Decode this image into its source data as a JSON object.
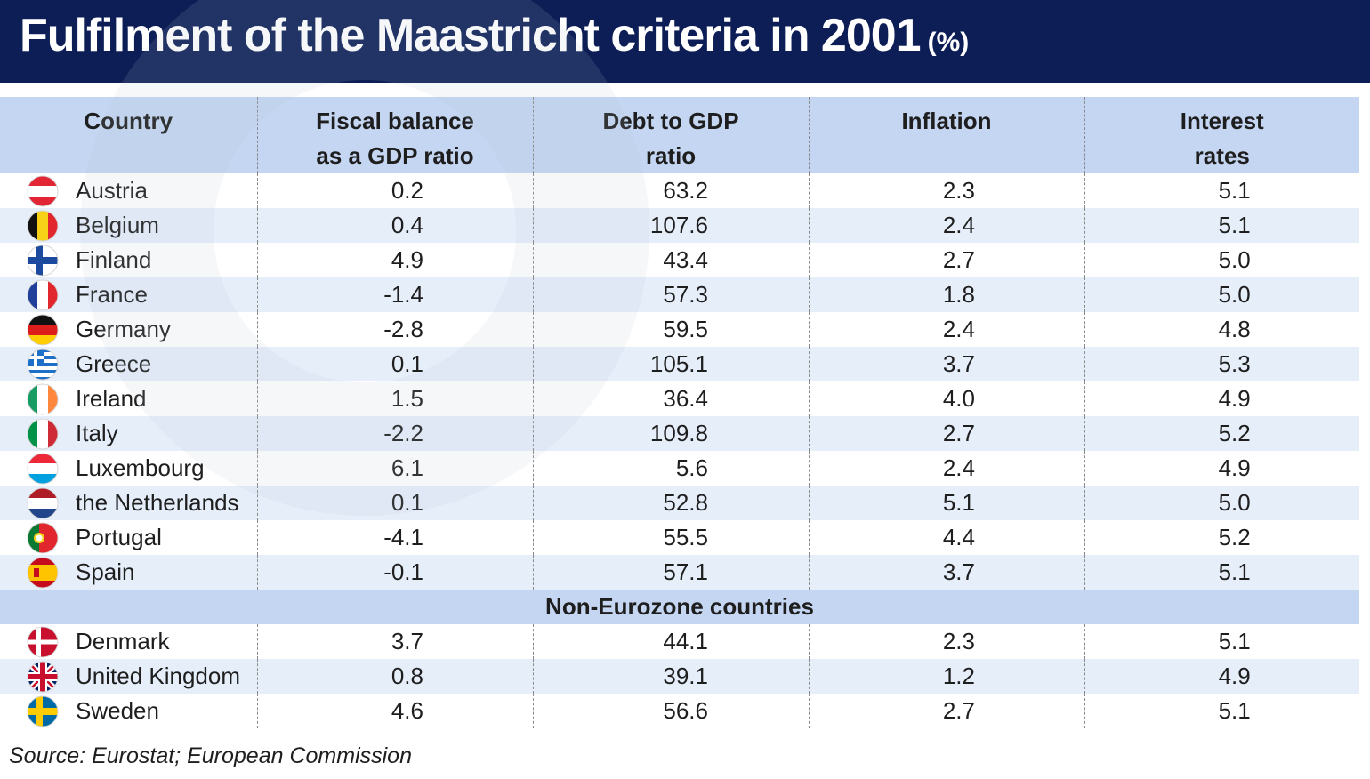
{
  "title": "Fulfilment of the Maastricht criteria in 2001",
  "title_unit": "(%)",
  "source": "Source: Eurostat; European Commission",
  "chart_data": {
    "type": "table",
    "columns": [
      {
        "line1": "Country",
        "line2": ""
      },
      {
        "line1": "Fiscal balance",
        "line2": "as a GDP ratio"
      },
      {
        "line1": "Debt to GDP",
        "line2": "ratio"
      },
      {
        "line1": "Inflation",
        "line2": ""
      },
      {
        "line1": "Interest",
        "line2": "rates"
      }
    ],
    "groups": [
      {
        "label": "",
        "rows": [
          {
            "country": "Austria",
            "flag": "austria-flag",
            "fiscal": "0.2",
            "debt": "63.2",
            "inflation": "2.3",
            "interest": "5.1"
          },
          {
            "country": "Belgium",
            "flag": "belgium-flag",
            "fiscal": "0.4",
            "debt": "107.6",
            "inflation": "2.4",
            "interest": "5.1"
          },
          {
            "country": "Finland",
            "flag": "finland-flag",
            "fiscal": "4.9",
            "debt": "43.4",
            "inflation": "2.7",
            "interest": "5.0"
          },
          {
            "country": "France",
            "flag": "france-flag",
            "fiscal": "-1.4",
            "debt": "57.3",
            "inflation": "1.8",
            "interest": "5.0"
          },
          {
            "country": "Germany",
            "flag": "germany-flag",
            "fiscal": "-2.8",
            "debt": "59.5",
            "inflation": "2.4",
            "interest": "4.8"
          },
          {
            "country": "Greece",
            "flag": "greece-flag",
            "fiscal": "0.1",
            "debt": "105.1",
            "inflation": "3.7",
            "interest": "5.3"
          },
          {
            "country": "Ireland",
            "flag": "ireland-flag",
            "fiscal": "1.5",
            "debt": "36.4",
            "inflation": "4.0",
            "interest": "4.9"
          },
          {
            "country": "Italy",
            "flag": "italy-flag",
            "fiscal": "-2.2",
            "debt": "109.8",
            "inflation": "2.7",
            "interest": "5.2"
          },
          {
            "country": "Luxembourg",
            "flag": "luxembourg-flag",
            "fiscal": "6.1",
            "debt": "5.6",
            "inflation": "2.4",
            "interest": "4.9"
          },
          {
            "country": "the Netherlands",
            "flag": "netherlands-flag",
            "fiscal": "0.1",
            "debt": "52.8",
            "inflation": "5.1",
            "interest": "5.0"
          },
          {
            "country": "Portugal",
            "flag": "portugal-flag",
            "fiscal": "-4.1",
            "debt": "55.5",
            "inflation": "4.4",
            "interest": "5.2"
          },
          {
            "country": "Spain",
            "flag": "spain-flag",
            "fiscal": "-0.1",
            "debt": "57.1",
            "inflation": "3.7",
            "interest": "5.1"
          }
        ]
      },
      {
        "label": "Non-Eurozone countries",
        "rows": [
          {
            "country": "Denmark",
            "flag": "denmark-flag",
            "fiscal": "3.7",
            "debt": "44.1",
            "inflation": "2.3",
            "interest": "5.1"
          },
          {
            "country": "United Kingdom",
            "flag": "uk-flag",
            "fiscal": "0.8",
            "debt": "39.1",
            "inflation": "1.2",
            "interest": "4.9"
          },
          {
            "country": "Sweden",
            "flag": "sweden-flag",
            "fiscal": "4.6",
            "debt": "56.6",
            "inflation": "2.7",
            "interest": "5.1"
          }
        ]
      }
    ]
  },
  "colors": {
    "title_bg": "#0d1e56",
    "header_bg": "#c5d6f2",
    "row_alt": "#e6eefa"
  }
}
